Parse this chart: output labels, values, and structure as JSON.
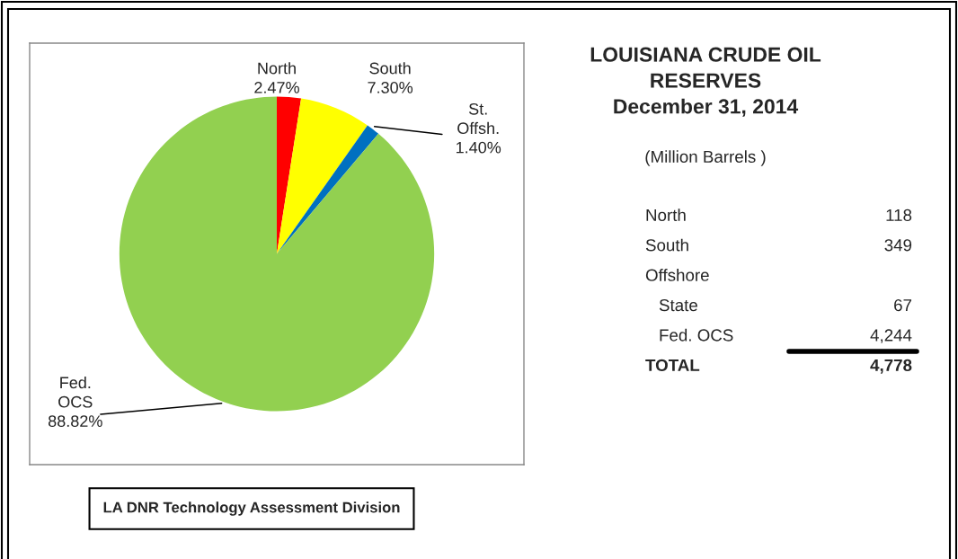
{
  "chart_data": [
    {
      "type": "pie",
      "categories": [
        "North",
        "South",
        "St. Offsh.",
        "Fed. OCS"
      ],
      "values": [
        2.47,
        7.3,
        1.4,
        88.82
      ],
      "value_labels": [
        "2.47%",
        "7.30%",
        "1.40%",
        "88.82%"
      ],
      "colors": [
        "#ff0000",
        "#ffff00",
        "#0070c0",
        "#92d050"
      ],
      "annotations": [
        "LA DNR Technology Assessment Division"
      ]
    },
    {
      "type": "other",
      "title": "LOUISIANA CRUDE OIL\nRESERVES\nDecember 31, 2014",
      "subtitle": "(Million Barrels )",
      "categories": [
        "North",
        "South",
        "Offshore",
        "State",
        "Fed. OCS",
        "TOTAL"
      ],
      "value_labels": [
        "118",
        "349",
        null,
        "67",
        "4,244",
        "4,778"
      ]
    }
  ]
}
